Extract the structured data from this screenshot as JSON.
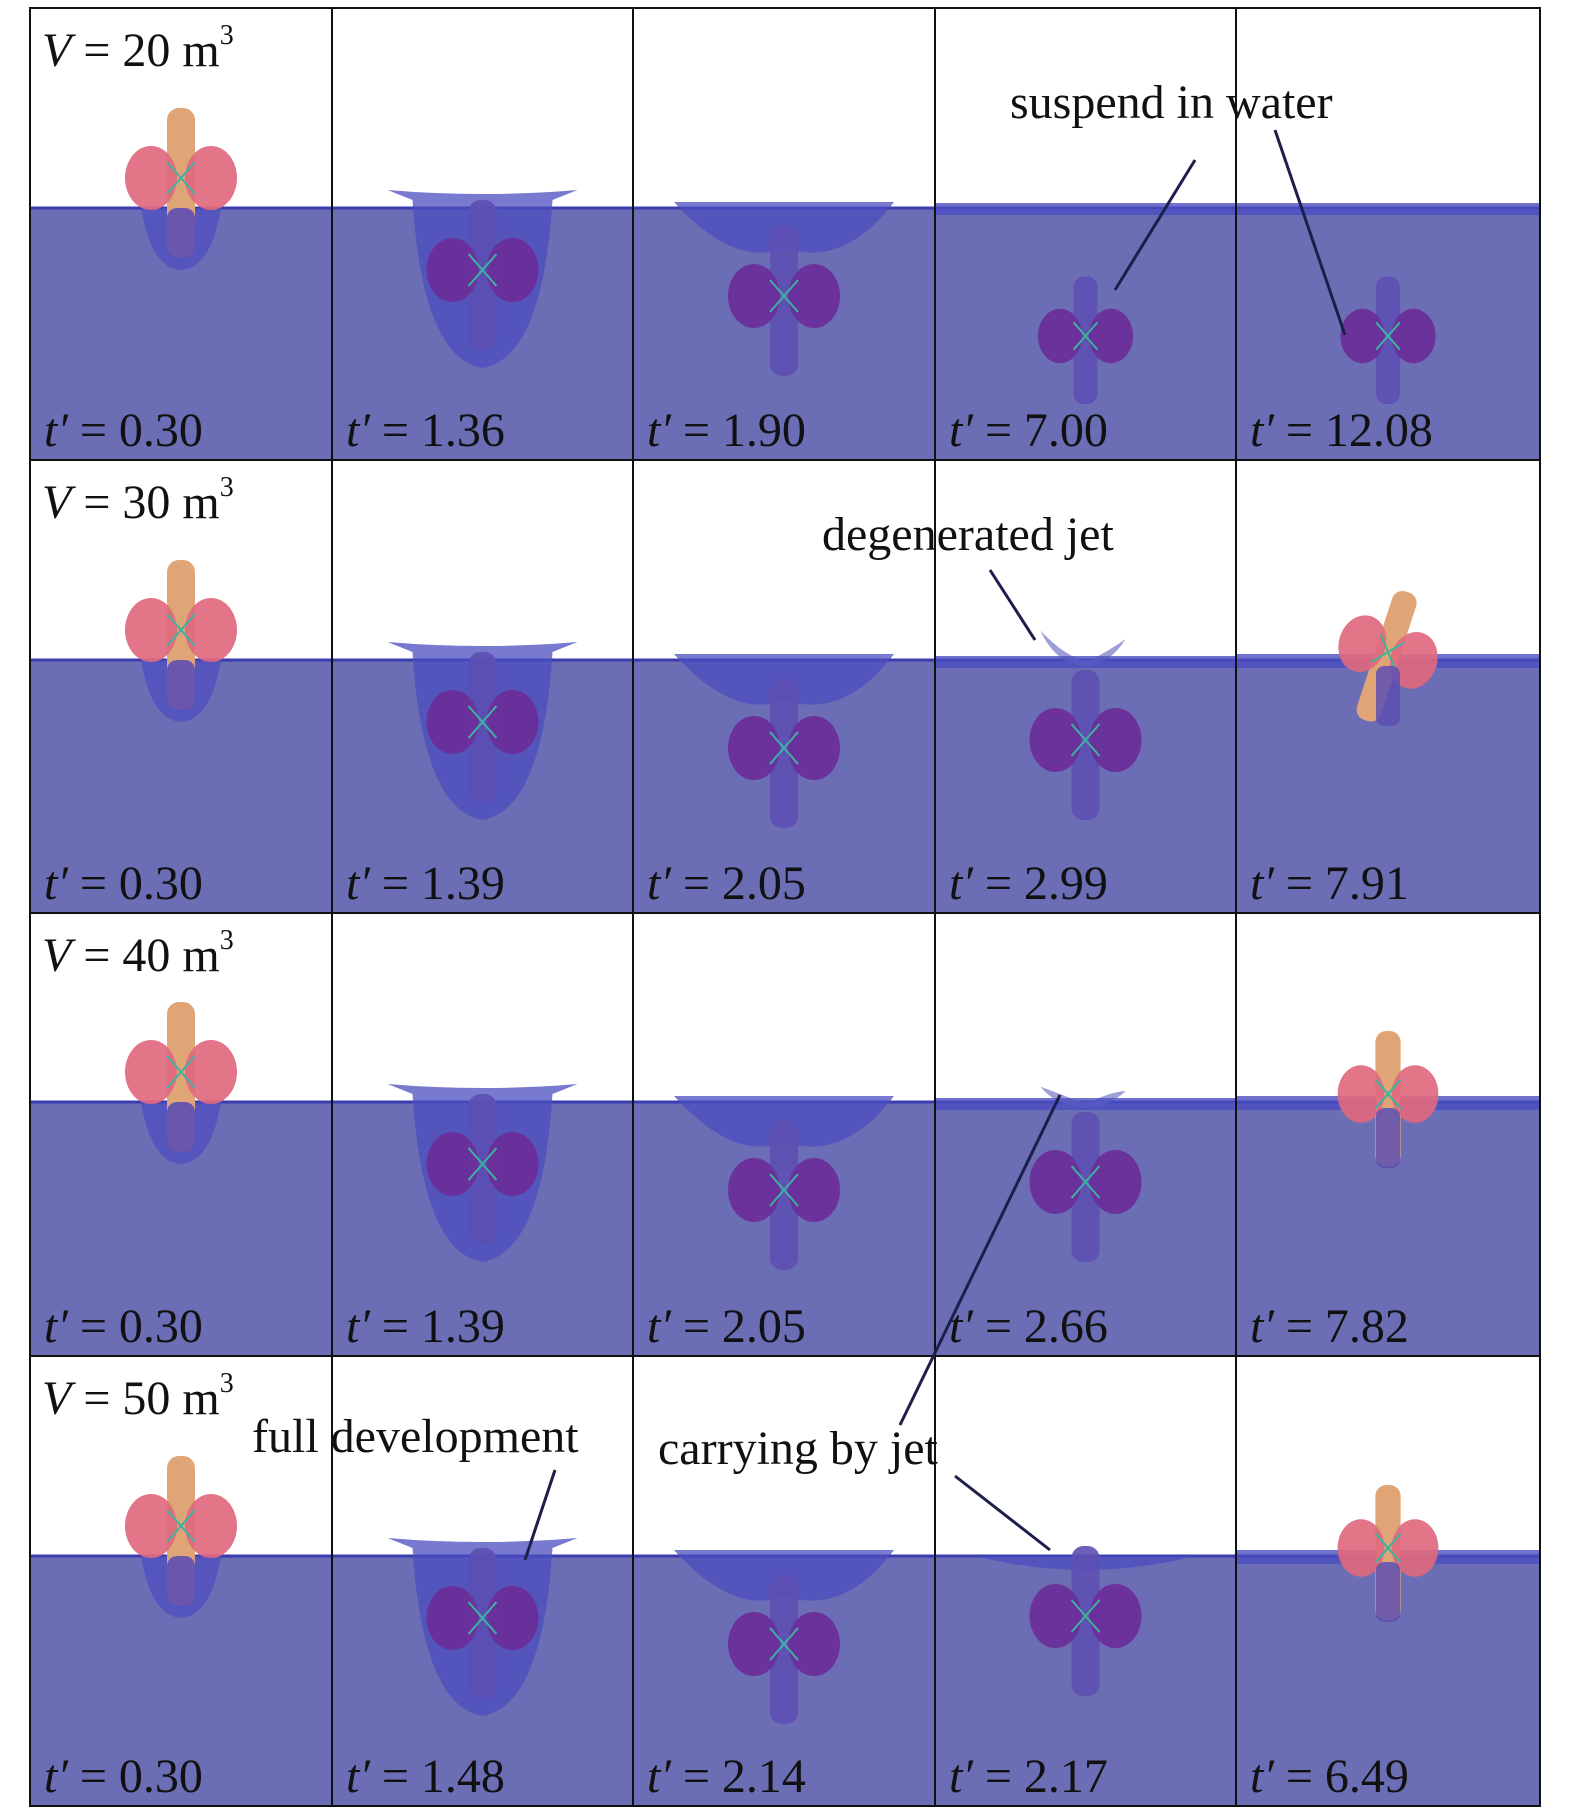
{
  "colors": {
    "water": "#6b6db5",
    "water_edge": "#3a3cb0",
    "splash": "#4b4dc0",
    "body_above": "#e0a577",
    "body_submerged": "#5d4fb2",
    "float_above": "#e0697e",
    "float_submerged": "#6b2e99",
    "grid": "#111111"
  },
  "rows": [
    {
      "volume": {
        "var": "V",
        "eq": " = ",
        "num": "20 m",
        "sup": "3"
      },
      "frames": [
        {
          "t": " = 0.30",
          "state": "entry"
        },
        {
          "t": " = 1.36",
          "state": "cavity"
        },
        {
          "t": " = 1.90",
          "state": "closing"
        },
        {
          "t": " = 7.00",
          "state": "sunk"
        },
        {
          "t": " = 12.08",
          "state": "sunk"
        }
      ]
    },
    {
      "volume": {
        "var": "V",
        "eq": " = ",
        "num": "30 m",
        "sup": "3"
      },
      "frames": [
        {
          "t": " = 0.30",
          "state": "entry"
        },
        {
          "t": " = 1.39",
          "state": "cavity"
        },
        {
          "t": " = 2.05",
          "state": "closing"
        },
        {
          "t": " = 2.99",
          "state": "jet"
        },
        {
          "t": " = 7.91",
          "state": "surfaced_tilted"
        }
      ]
    },
    {
      "volume": {
        "var": "V",
        "eq": " = ",
        "num": "40 m",
        "sup": "3"
      },
      "frames": [
        {
          "t": " = 0.30",
          "state": "entry"
        },
        {
          "t": " = 1.39",
          "state": "cavity"
        },
        {
          "t": " = 2.05",
          "state": "closing"
        },
        {
          "t": " = 2.66",
          "state": "jet_small"
        },
        {
          "t": " = 7.82",
          "state": "surfaced"
        }
      ]
    },
    {
      "volume": {
        "var": "V",
        "eq": " = ",
        "num": "50 m",
        "sup": "3"
      },
      "frames": [
        {
          "t": " = 0.30",
          "state": "entry"
        },
        {
          "t": " = 1.48",
          "state": "cavity"
        },
        {
          "t": " = 2.14",
          "state": "closing"
        },
        {
          "t": " = 2.17",
          "state": "shallow"
        },
        {
          "t": " = 6.49",
          "state": "surfaced"
        }
      ]
    }
  ],
  "time_symbol": "t′",
  "annotations": [
    {
      "text": "suspend in water"
    },
    {
      "text": "degenerated jet"
    },
    {
      "text": "full development"
    },
    {
      "text": "carrying by jet"
    }
  ]
}
